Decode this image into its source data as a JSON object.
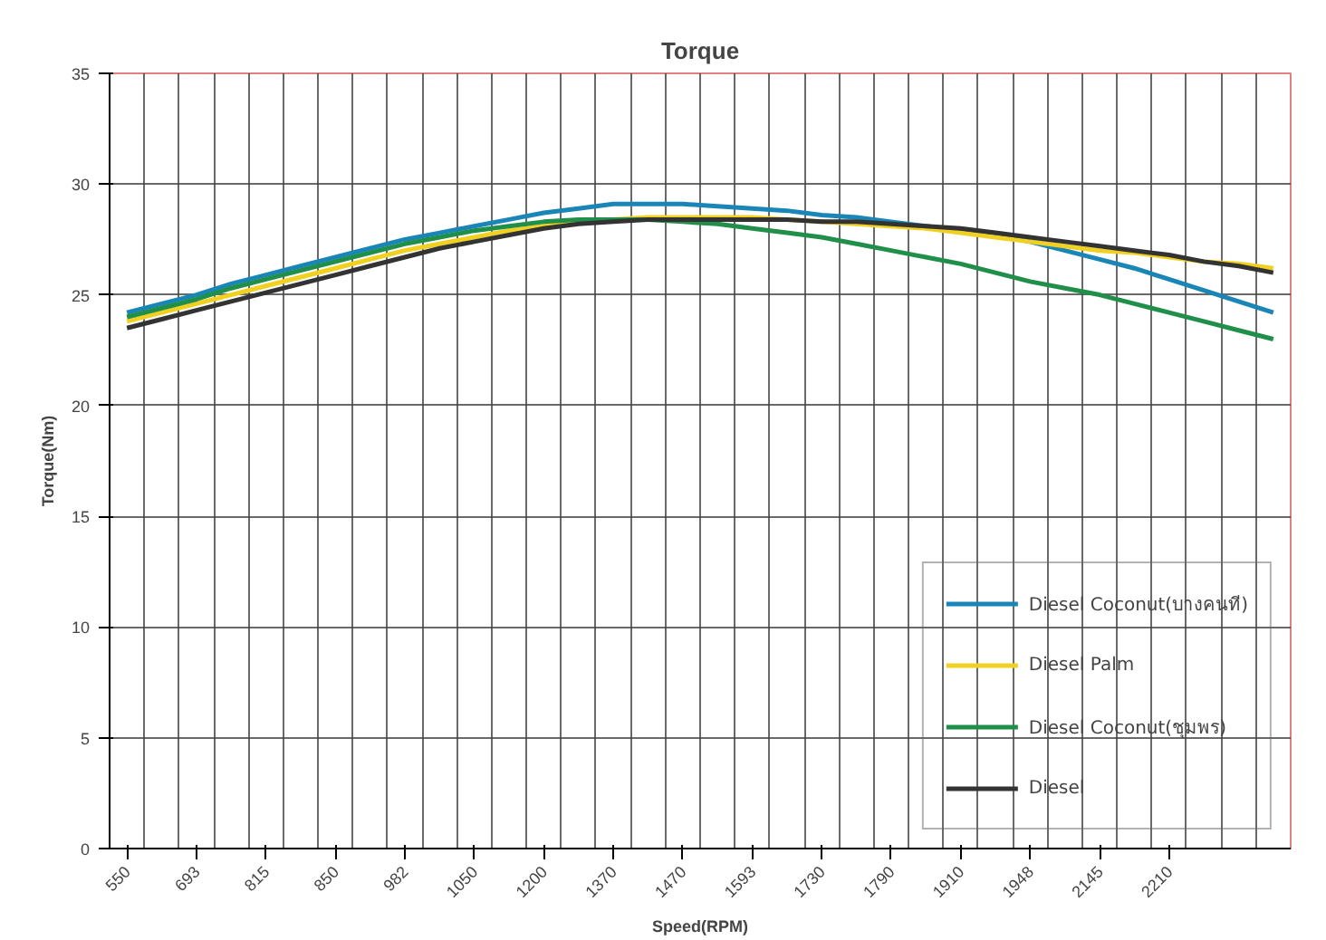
{
  "chart_data": {
    "type": "line",
    "title": "Torque",
    "xlabel": "Speed(RPM)",
    "ylabel": "Torque(Nm)",
    "categories": [
      "550",
      null,
      "693",
      null,
      "815",
      null,
      "850",
      null,
      "982",
      null,
      "1050",
      null,
      "1200",
      null,
      "1370",
      null,
      "1470",
      null,
      "1593",
      null,
      "1730",
      null,
      "1790",
      null,
      "1910",
      null,
      "1948",
      null,
      "2145",
      null,
      "2210",
      null,
      null,
      null
    ],
    "ylim": [
      0,
      35
    ],
    "yticks": [
      0,
      5,
      10,
      15,
      20,
      25,
      30,
      35
    ],
    "grid": true,
    "legend": "bottom right",
    "line_style": "solid",
    "marker": "none",
    "series": [
      {
        "name": "Diesel Coconut(บางคนที)",
        "color": "#1a86b8",
        "values": [
          24.2,
          24.6,
          25.0,
          25.5,
          25.9,
          26.3,
          26.7,
          27.1,
          27.5,
          27.8,
          28.1,
          28.4,
          28.7,
          28.9,
          29.1,
          29.1,
          29.1,
          29.0,
          28.9,
          28.8,
          28.6,
          28.5,
          28.3,
          28.1,
          27.9,
          27.7,
          27.4,
          27.0,
          26.6,
          26.2,
          25.7,
          25.2,
          24.7,
          24.2
        ]
      },
      {
        "name": "Diesel Palm",
        "color": "#f0d020",
        "values": [
          23.8,
          24.2,
          24.6,
          25.0,
          25.4,
          25.8,
          26.2,
          26.6,
          27.0,
          27.3,
          27.6,
          27.9,
          28.1,
          28.3,
          28.4,
          28.5,
          28.5,
          28.5,
          28.5,
          28.4,
          28.3,
          28.2,
          28.1,
          28.0,
          27.8,
          27.6,
          27.4,
          27.2,
          27.0,
          26.9,
          26.7,
          26.5,
          26.4,
          26.2
        ]
      },
      {
        "name": "Diesel Coconut(ชุมพร)",
        "color": "#1f8f4a",
        "values": [
          24.0,
          24.4,
          24.8,
          25.3,
          25.7,
          26.1,
          26.5,
          26.9,
          27.3,
          27.6,
          27.9,
          28.1,
          28.3,
          28.4,
          28.4,
          28.4,
          28.3,
          28.2,
          28.0,
          27.8,
          27.6,
          27.3,
          27.0,
          26.7,
          26.4,
          26.0,
          25.6,
          25.3,
          25.0,
          24.6,
          24.2,
          23.8,
          23.4,
          23.0
        ]
      },
      {
        "name": "Diesel",
        "color": "#333333",
        "values": [
          23.5,
          23.9,
          24.3,
          24.7,
          25.1,
          25.5,
          25.9,
          26.3,
          26.7,
          27.1,
          27.4,
          27.7,
          28.0,
          28.2,
          28.3,
          28.4,
          28.4,
          28.4,
          28.4,
          28.4,
          28.3,
          28.3,
          28.2,
          28.1,
          28.0,
          27.8,
          27.6,
          27.4,
          27.2,
          27.0,
          26.8,
          26.5,
          26.3,
          26.0
        ]
      }
    ]
  }
}
